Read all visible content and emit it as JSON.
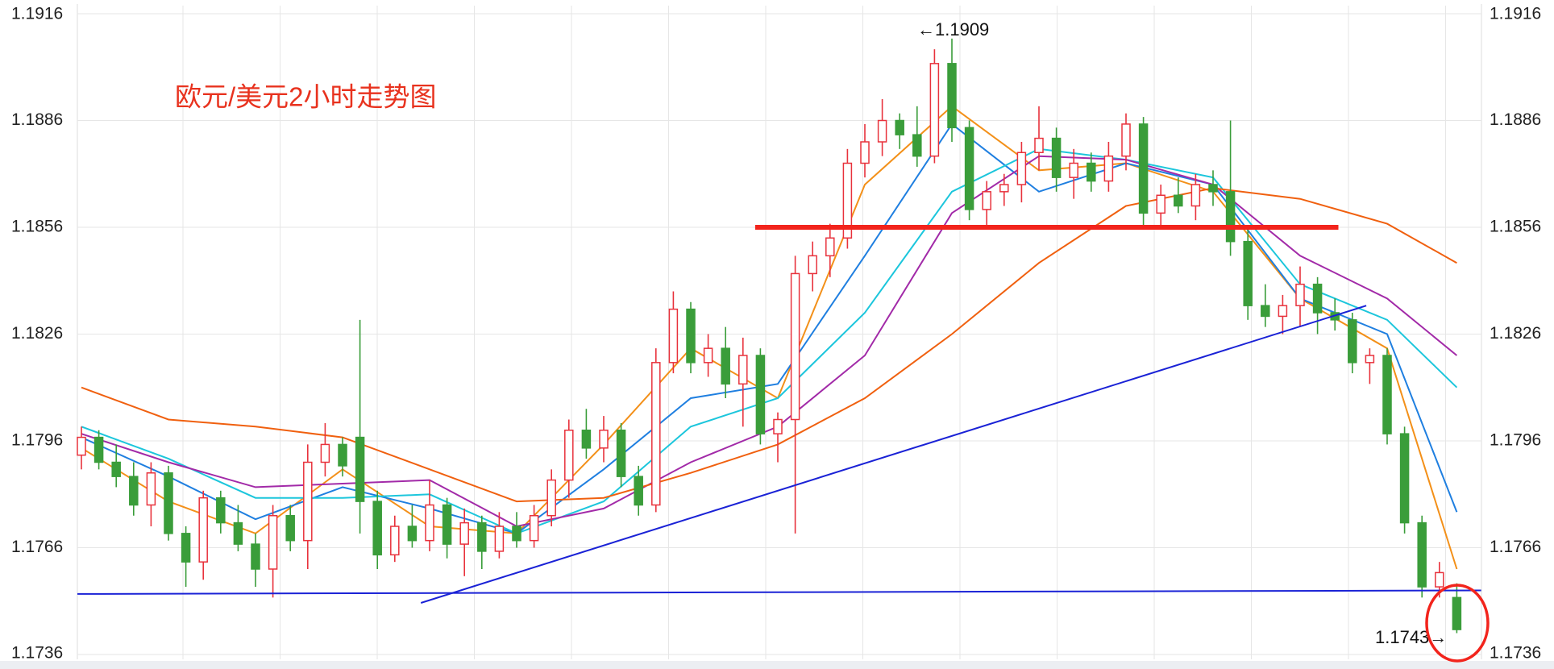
{
  "chart_data": {
    "type": "candlestick",
    "title": "欧元/美元2小时走势图",
    "annotations": [
      "←1.1909",
      "1.1743→"
    ],
    "ylim": [
      1.1736,
      1.1916
    ],
    "yticks": [
      1.1736,
      1.1766,
      1.1796,
      1.1826,
      1.1856,
      1.1886,
      1.1916
    ],
    "grid": true,
    "up_color": "#e8323c",
    "down_color": "#3a9d3a",
    "candles": [
      [
        1.1792,
        1.18,
        1.1788,
        1.1797
      ],
      [
        1.1797,
        1.1799,
        1.1788,
        1.179
      ],
      [
        1.179,
        1.1795,
        1.1783,
        1.1786
      ],
      [
        1.1786,
        1.179,
        1.1775,
        1.1778
      ],
      [
        1.1778,
        1.179,
        1.1772,
        1.1787
      ],
      [
        1.1787,
        1.1789,
        1.1768,
        1.177
      ],
      [
        1.177,
        1.1772,
        1.1755,
        1.1762
      ],
      [
        1.1762,
        1.1782,
        1.1757,
        1.178
      ],
      [
        1.178,
        1.1782,
        1.177,
        1.1773
      ],
      [
        1.1773,
        1.1778,
        1.1765,
        1.1767
      ],
      [
        1.1767,
        1.177,
        1.1755,
        1.176
      ],
      [
        1.176,
        1.1778,
        1.1752,
        1.1775
      ],
      [
        1.1775,
        1.1778,
        1.1765,
        1.1768
      ],
      [
        1.1768,
        1.1795,
        1.176,
        1.179
      ],
      [
        1.179,
        1.1801,
        1.1786,
        1.1795
      ],
      [
        1.1795,
        1.1797,
        1.1786,
        1.1789
      ],
      [
        1.1797,
        1.183,
        1.177,
        1.1779
      ],
      [
        1.1779,
        1.1782,
        1.176,
        1.1764
      ],
      [
        1.1764,
        1.1775,
        1.1762,
        1.1772
      ],
      [
        1.1772,
        1.1778,
        1.1766,
        1.1768
      ],
      [
        1.1768,
        1.1785,
        1.1765,
        1.1778
      ],
      [
        1.1778,
        1.178,
        1.1763,
        1.1767
      ],
      [
        1.1767,
        1.1777,
        1.1758,
        1.1773
      ],
      [
        1.1773,
        1.1775,
        1.176,
        1.1765
      ],
      [
        1.1765,
        1.1776,
        1.1763,
        1.1772
      ],
      [
        1.1772,
        1.1776,
        1.1766,
        1.1768
      ],
      [
        1.1768,
        1.1778,
        1.1766,
        1.1775
      ],
      [
        1.1775,
        1.1788,
        1.1772,
        1.1785
      ],
      [
        1.1785,
        1.1802,
        1.178,
        1.1799
      ],
      [
        1.1799,
        1.1805,
        1.1791,
        1.1794
      ],
      [
        1.1794,
        1.1803,
        1.179,
        1.1799
      ],
      [
        1.1799,
        1.1801,
        1.1783,
        1.1786
      ],
      [
        1.1786,
        1.1789,
        1.1775,
        1.1778
      ],
      [
        1.1778,
        1.1822,
        1.1776,
        1.1818
      ],
      [
        1.1818,
        1.1838,
        1.1815,
        1.1833
      ],
      [
        1.1833,
        1.1835,
        1.1815,
        1.1818
      ],
      [
        1.1818,
        1.1826,
        1.1814,
        1.1822
      ],
      [
        1.1822,
        1.1828,
        1.1808,
        1.1812
      ],
      [
        1.1812,
        1.1825,
        1.18,
        1.182
      ],
      [
        1.182,
        1.1822,
        1.1795,
        1.1798
      ],
      [
        1.1798,
        1.1804,
        1.179,
        1.1802
      ],
      [
        1.1802,
        1.1848,
        1.177,
        1.1843
      ],
      [
        1.1843,
        1.1852,
        1.1838,
        1.1848
      ],
      [
        1.1848,
        1.1857,
        1.1842,
        1.1853
      ],
      [
        1.1853,
        1.1878,
        1.185,
        1.1874
      ],
      [
        1.1874,
        1.1885,
        1.187,
        1.188
      ],
      [
        1.188,
        1.1892,
        1.1876,
        1.1886
      ],
      [
        1.1886,
        1.1888,
        1.1878,
        1.1882
      ],
      [
        1.1882,
        1.189,
        1.1873,
        1.1876
      ],
      [
        1.1876,
        1.1906,
        1.1874,
        1.1902
      ],
      [
        1.1902,
        1.1909,
        1.188,
        1.1884
      ],
      [
        1.1884,
        1.1886,
        1.1858,
        1.1861
      ],
      [
        1.1861,
        1.1869,
        1.1856,
        1.1866
      ],
      [
        1.1866,
        1.1871,
        1.1862,
        1.1868
      ],
      [
        1.1868,
        1.188,
        1.1863,
        1.1877
      ],
      [
        1.1877,
        1.189,
        1.1872,
        1.1881
      ],
      [
        1.1881,
        1.1884,
        1.1866,
        1.187
      ],
      [
        1.187,
        1.1878,
        1.1864,
        1.1874
      ],
      [
        1.1874,
        1.1877,
        1.1866,
        1.1869
      ],
      [
        1.1869,
        1.188,
        1.1866,
        1.1876
      ],
      [
        1.1876,
        1.1888,
        1.1872,
        1.1885
      ],
      [
        1.1885,
        1.1887,
        1.1856,
        1.186
      ],
      [
        1.186,
        1.1868,
        1.1856,
        1.1865
      ],
      [
        1.1865,
        1.187,
        1.186,
        1.1862
      ],
      [
        1.1862,
        1.1871,
        1.1858,
        1.1868
      ],
      [
        1.1868,
        1.1872,
        1.1862,
        1.1866
      ],
      [
        1.1866,
        1.1886,
        1.1848,
        1.1852
      ],
      [
        1.1852,
        1.1856,
        1.183,
        1.1834
      ],
      [
        1.1834,
        1.184,
        1.1828,
        1.1831
      ],
      [
        1.1831,
        1.1837,
        1.1826,
        1.1834
      ],
      [
        1.1834,
        1.1845,
        1.1828,
        1.184
      ],
      [
        1.184,
        1.1842,
        1.1826,
        1.1832
      ],
      [
        1.1832,
        1.1836,
        1.1827,
        1.183
      ],
      [
        1.183,
        1.1832,
        1.1815,
        1.1818
      ],
      [
        1.1818,
        1.1822,
        1.1812,
        1.182
      ],
      [
        1.182,
        1.1822,
        1.1795,
        1.1798
      ],
      [
        1.1798,
        1.18,
        1.177,
        1.1773
      ],
      [
        1.1773,
        1.1775,
        1.1752,
        1.1755
      ],
      [
        1.1755,
        1.1762,
        1.1752,
        1.1759
      ],
      [
        1.1752,
        1.1756,
        1.1742,
        1.1743
      ]
    ],
    "ma_x": [
      0,
      5,
      10,
      15,
      20,
      25,
      30,
      35,
      40,
      45,
      50,
      55,
      60,
      65,
      70,
      75,
      79
    ],
    "moving_averages": [
      {
        "color": "#f39019",
        "values": [
          1.1794,
          1.1779,
          1.177,
          1.1788,
          1.1772,
          1.177,
          1.1795,
          1.1822,
          1.1808,
          1.1868,
          1.189,
          1.1872,
          1.1874,
          1.1866,
          1.1836,
          1.1822,
          1.176
        ]
      },
      {
        "color": "#1f7fe0",
        "values": [
          1.1797,
          1.1786,
          1.1774,
          1.1783,
          1.1777,
          1.177,
          1.1788,
          1.1808,
          1.1812,
          1.1848,
          1.1885,
          1.1866,
          1.1874,
          1.1868,
          1.1836,
          1.1826,
          1.1776
        ]
      },
      {
        "color": "#1cc6dc",
        "values": [
          1.18,
          1.1791,
          1.178,
          1.178,
          1.1781,
          1.177,
          1.1779,
          1.18,
          1.1808,
          1.1832,
          1.1866,
          1.1878,
          1.1875,
          1.187,
          1.184,
          1.183,
          1.1811
        ]
      },
      {
        "color": "#a22aa8",
        "values": [
          1.1798,
          1.179,
          1.1783,
          1.1784,
          1.1785,
          1.1772,
          1.1777,
          1.179,
          1.18,
          1.182,
          1.186,
          1.1876,
          1.1875,
          1.1868,
          1.1848,
          1.1836,
          1.182
        ]
      },
      {
        "color": "#f0600f",
        "values": [
          1.1811,
          1.1802,
          1.18,
          1.1797,
          1.1788,
          1.1779,
          1.178,
          1.1787,
          1.1795,
          1.1808,
          1.1826,
          1.1846,
          1.1862,
          1.1867,
          1.1864,
          1.1857,
          1.1846
        ]
      }
    ],
    "lines": [
      {
        "color": "#1a22d6",
        "x": [
          -0.23,
          80.4
        ],
        "values": [
          1.1753,
          1.1754
        ]
      },
      {
        "color": "#1a22d6",
        "x": [
          19.5,
          73.8
        ],
        "values": [
          1.17505,
          1.1834
        ]
      },
      {
        "color": "#f2241c",
        "x": [
          38.7,
          72.2
        ],
        "values": [
          1.1856,
          1.1856
        ]
      }
    ]
  }
}
